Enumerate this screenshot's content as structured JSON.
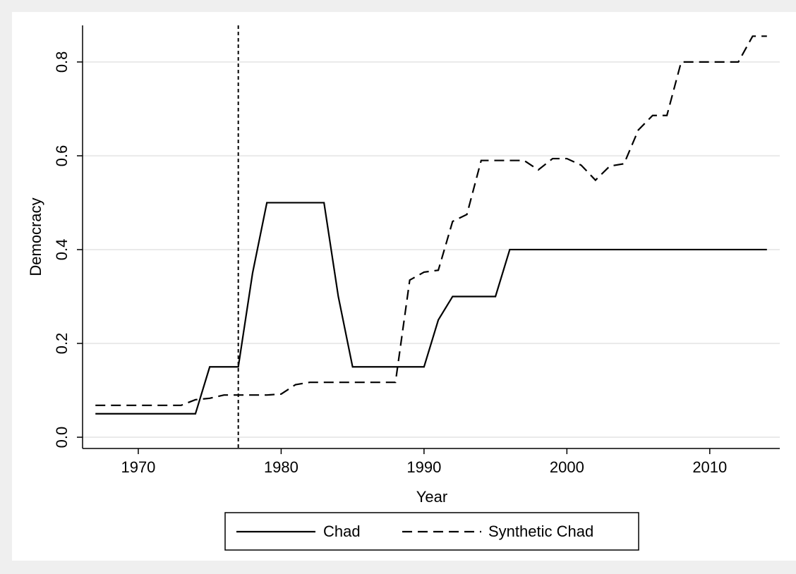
{
  "chart_data": {
    "type": "line",
    "x": [
      1967,
      1968,
      1969,
      1970,
      1971,
      1972,
      1973,
      1974,
      1975,
      1976,
      1977,
      1978,
      1979,
      1980,
      1981,
      1982,
      1983,
      1984,
      1985,
      1986,
      1987,
      1988,
      1989,
      1990,
      1991,
      1992,
      1993,
      1994,
      1995,
      1996,
      1997,
      1998,
      1999,
      2000,
      2001,
      2002,
      2003,
      2004,
      2005,
      2006,
      2007,
      2008,
      2009,
      2010,
      2011,
      2012,
      2013,
      2014
    ],
    "series": [
      {
        "name": "Chad",
        "color": "#000000",
        "dash": "solid",
        "values": [
          0.05,
          0.05,
          0.05,
          0.05,
          0.05,
          0.05,
          0.05,
          0.05,
          0.15,
          0.15,
          0.15,
          0.35,
          0.5,
          0.5,
          0.5,
          0.5,
          0.5,
          0.3,
          0.15,
          0.15,
          0.15,
          0.15,
          0.15,
          0.15,
          0.25,
          0.3,
          0.3,
          0.3,
          0.3,
          0.4,
          0.4,
          0.4,
          0.4,
          0.4,
          0.4,
          0.4,
          0.4,
          0.4,
          0.4,
          0.4,
          0.4,
          0.4,
          0.4,
          0.4,
          0.4,
          0.4,
          0.4,
          0.4
        ]
      },
      {
        "name": "Synthetic Chad",
        "color": "#000000",
        "dash": "dashed",
        "values": [
          0.068,
          0.068,
          0.068,
          0.068,
          0.068,
          0.068,
          0.068,
          0.08,
          0.083,
          0.09,
          0.09,
          0.09,
          0.09,
          0.092,
          0.112,
          0.117,
          0.117,
          0.117,
          0.117,
          0.117,
          0.117,
          0.117,
          0.335,
          0.352,
          0.356,
          0.46,
          0.475,
          0.59,
          0.59,
          0.59,
          0.59,
          0.57,
          0.594,
          0.594,
          0.58,
          0.548,
          0.578,
          0.583,
          0.655,
          0.686,
          0.686,
          0.8,
          0.8,
          0.8,
          0.8,
          0.8,
          0.855,
          0.855
        ]
      }
    ],
    "vline": 1977,
    "x_label": "Year",
    "y_label": "Democracy",
    "xlim": [
      1966.1,
      2014.9
    ],
    "xticks": [
      1970,
      1980,
      1990,
      2000,
      2010
    ],
    "ylim": [
      -0.024,
      0.878
    ],
    "yticks": [
      {
        "value": 0,
        "label": "0.0"
      },
      0.2,
      0.4,
      0.6,
      0.8
    ],
    "grid": true,
    "legend": "bottom"
  }
}
